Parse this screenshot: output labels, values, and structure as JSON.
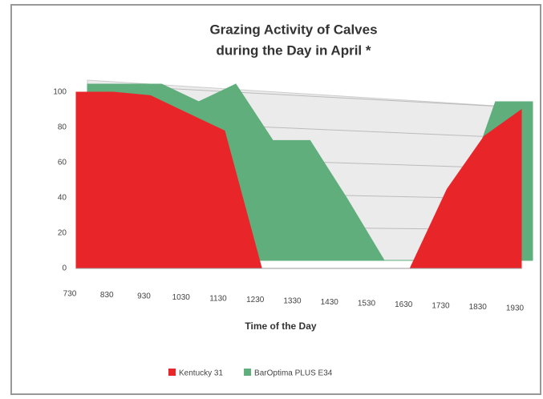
{
  "chart_data": {
    "type": "area3d",
    "title": "Grazing Activity of Calves",
    "subtitle": "during the Day in April *",
    "x_label": "Time of the Day",
    "categories": [
      "730",
      "830",
      "930",
      "1030",
      "1130",
      "1230",
      "1330",
      "1430",
      "1530",
      "1630",
      "1730",
      "1830",
      "1930"
    ],
    "series": [
      {
        "name": "Kentucky 31",
        "color": "#e8262a",
        "values": [
          100,
          100,
          98,
          88,
          78,
          0,
          0,
          0,
          0,
          0,
          45,
          75,
          90
        ]
      },
      {
        "name": "BarOptima PLUS E34",
        "color": "#5fae7c",
        "values": [
          100,
          100,
          100,
          90,
          100,
          68,
          68,
          35,
          0,
          0,
          30,
          90,
          90
        ]
      }
    ],
    "ylim": [
      0,
      100
    ],
    "yticks": [
      0,
      20,
      40,
      60,
      80,
      100
    ],
    "grid": true,
    "legend": "bottom"
  }
}
